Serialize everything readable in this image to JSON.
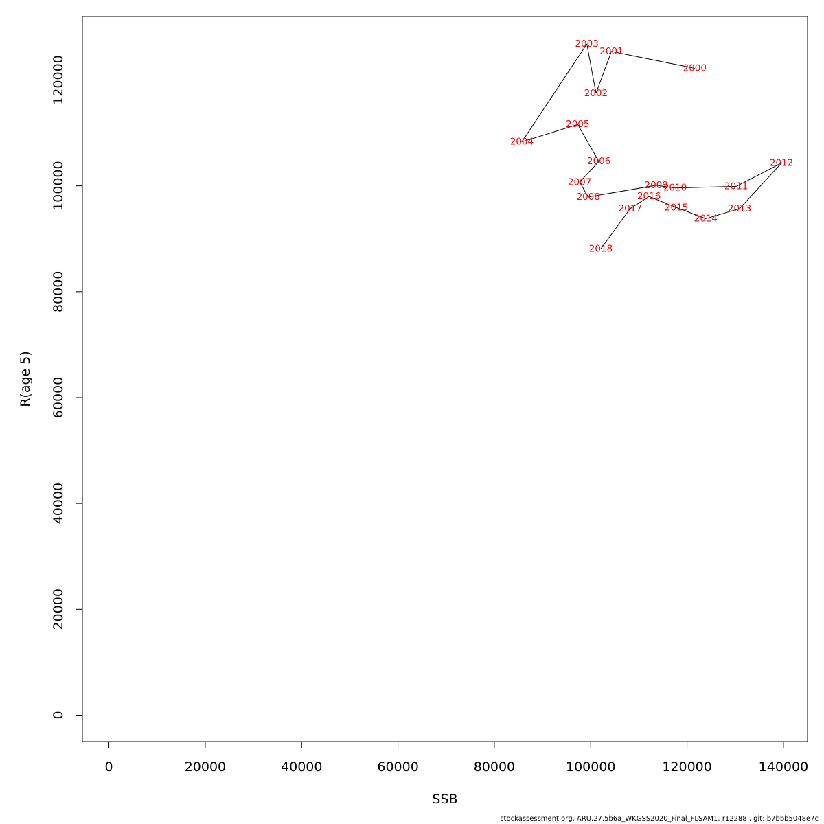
{
  "footer": "stockassessment.org, ARU.27.5b6a_WKGSS2020_Final_FLSAM1, r12288 , git: b7bbb5048e7c",
  "chart_data": {
    "type": "scatter",
    "xlabel": "SSB",
    "ylabel": "R(age 5)",
    "xlim": [
      -5500,
      145000
    ],
    "ylim": [
      -5000,
      132000
    ],
    "x_ticks": [
      0,
      20000,
      40000,
      60000,
      80000,
      100000,
      120000,
      140000
    ],
    "y_ticks": [
      0,
      20000,
      40000,
      60000,
      80000,
      100000,
      120000
    ],
    "line_color": "#000000",
    "label_color": "#ff0000",
    "grid": false,
    "points": [
      {
        "label": "2000",
        "x": 121600,
        "y": 122200
      },
      {
        "label": "2001",
        "x": 104300,
        "y": 125400
      },
      {
        "label": "2002",
        "x": 101100,
        "y": 117500
      },
      {
        "label": "2003",
        "x": 99200,
        "y": 126800
      },
      {
        "label": "2004",
        "x": 85700,
        "y": 108300
      },
      {
        "label": "2005",
        "x": 97300,
        "y": 111600
      },
      {
        "label": "2006",
        "x": 101700,
        "y": 104600
      },
      {
        "label": "2007",
        "x": 97700,
        "y": 100700
      },
      {
        "label": "2008",
        "x": 99500,
        "y": 97900
      },
      {
        "label": "2009",
        "x": 113600,
        "y": 100100
      },
      {
        "label": "2010",
        "x": 117500,
        "y": 99600
      },
      {
        "label": "2011",
        "x": 130200,
        "y": 99900
      },
      {
        "label": "2012",
        "x": 139600,
        "y": 104300
      },
      {
        "label": "2013",
        "x": 130900,
        "y": 95700
      },
      {
        "label": "2014",
        "x": 123900,
        "y": 93800
      },
      {
        "label": "2015",
        "x": 117800,
        "y": 95900
      },
      {
        "label": "2016",
        "x": 112100,
        "y": 98000
      },
      {
        "label": "2017",
        "x": 108200,
        "y": 95700
      },
      {
        "label": "2018",
        "x": 102100,
        "y": 88100
      }
    ]
  }
}
